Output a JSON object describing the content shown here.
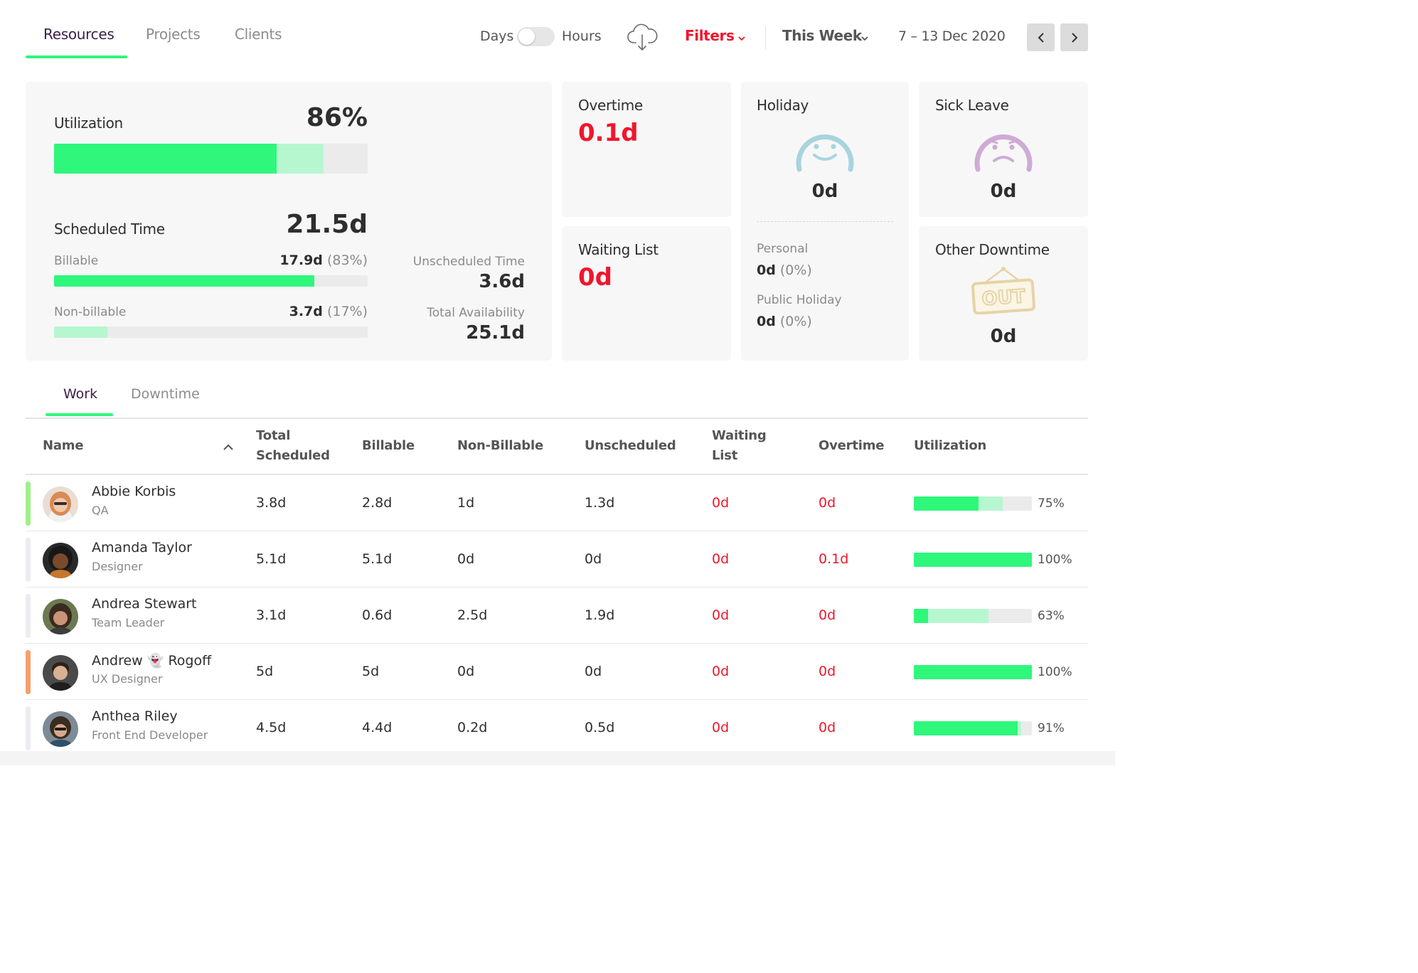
{
  "nav": {
    "tabs": [
      {
        "label": "Resources",
        "active": true
      },
      {
        "label": "Projects",
        "active": false
      },
      {
        "label": "Clients",
        "active": false
      }
    ],
    "toggle_left": "Days",
    "toggle_right": "Hours",
    "filters_label": "Filters",
    "period_label": "This Week",
    "date_range": "7 – 13 Dec 2020"
  },
  "summary": {
    "utilization": {
      "label": "Utilization",
      "value": "86%",
      "billable_fraction": 0.71,
      "nonbillable_fraction": 0.15
    },
    "scheduled": {
      "label": "Scheduled Time",
      "value": "21.5d"
    },
    "billable": {
      "label": "Billable",
      "value": "17.9d",
      "pct": "(83%)",
      "fraction": 0.83
    },
    "nonbillable": {
      "label": "Non-billable",
      "value": "3.7d",
      "pct": "(17%)",
      "fraction": 0.17
    },
    "unscheduled": {
      "label": "Unscheduled Time",
      "value": "3.6d"
    },
    "availability": {
      "label": "Total Availability",
      "value": "25.1d"
    }
  },
  "overtime": {
    "label": "Overtime",
    "value": "0.1d"
  },
  "waiting": {
    "label": "Waiting List",
    "value": "0d"
  },
  "holiday": {
    "label": "Holiday",
    "value": "0d",
    "personal": {
      "label": "Personal",
      "value": "0d",
      "pct": "(0%)"
    },
    "public": {
      "label": "Public Holiday",
      "value": "0d",
      "pct": "(0%)"
    }
  },
  "sick": {
    "label": "Sick Leave",
    "value": "0d"
  },
  "other": {
    "label": "Other Downtime",
    "value": "0d",
    "sign_text": "OUT"
  },
  "subtabs": [
    {
      "label": "Work",
      "active": true
    },
    {
      "label": "Downtime",
      "active": false
    }
  ],
  "table": {
    "headers": {
      "name": "Name",
      "total_1": "Total",
      "total_2": "Scheduled",
      "billable": "Billable",
      "nonbillable": "Non-Billable",
      "unscheduled": "Unscheduled",
      "waiting_1": "Waiting",
      "waiting_2": "List",
      "overtime": "Overtime",
      "utilization": "Utilization"
    },
    "rows": [
      {
        "name": "Abbie Korbis",
        "role": "QA",
        "total": "3.8d",
        "billable": "2.8d",
        "nonbillable": "1d",
        "unscheduled": "1.3d",
        "waiting": "0d",
        "overtime": "0d",
        "util": "75%",
        "util_billable": 0.55,
        "util_nonbillable": 0.2,
        "marker": "#9ef08a"
      },
      {
        "name": "Amanda Taylor",
        "role": "Designer",
        "total": "5.1d",
        "billable": "5.1d",
        "nonbillable": "0d",
        "unscheduled": "0d",
        "waiting": "0d",
        "overtime": "0.1d",
        "util": "100%",
        "util_billable": 1.0,
        "util_nonbillable": 0.0,
        "marker": "#ececf2"
      },
      {
        "name": "Andrea Stewart",
        "role": "Team Leader",
        "total": "3.1d",
        "billable": "0.6d",
        "nonbillable": "2.5d",
        "unscheduled": "1.9d",
        "waiting": "0d",
        "overtime": "0d",
        "util": "63%",
        "util_billable": 0.12,
        "util_nonbillable": 0.51,
        "marker": "#ececf2"
      },
      {
        "name": "Andrew 👻 Rogoff",
        "role": "UX Designer",
        "total": "5d",
        "billable": "5d",
        "nonbillable": "0d",
        "unscheduled": "0d",
        "waiting": "0d",
        "overtime": "0d",
        "util": "100%",
        "util_billable": 1.0,
        "util_nonbillable": 0.0,
        "marker": "#f5a06e"
      },
      {
        "name": "Anthea Riley",
        "role": "Front End Developer",
        "total": "4.5d",
        "billable": "4.4d",
        "nonbillable": "0.2d",
        "unscheduled": "0.5d",
        "waiting": "0d",
        "overtime": "0d",
        "util": "91%",
        "util_billable": 0.88,
        "util_nonbillable": 0.03,
        "marker": "#ececf2"
      }
    ]
  },
  "colors": {
    "accent_green": "#2ef77b",
    "light_green": "#b6f7d0",
    "alert_red": "#f0162b",
    "tab_active": "#3a1f4a"
  }
}
